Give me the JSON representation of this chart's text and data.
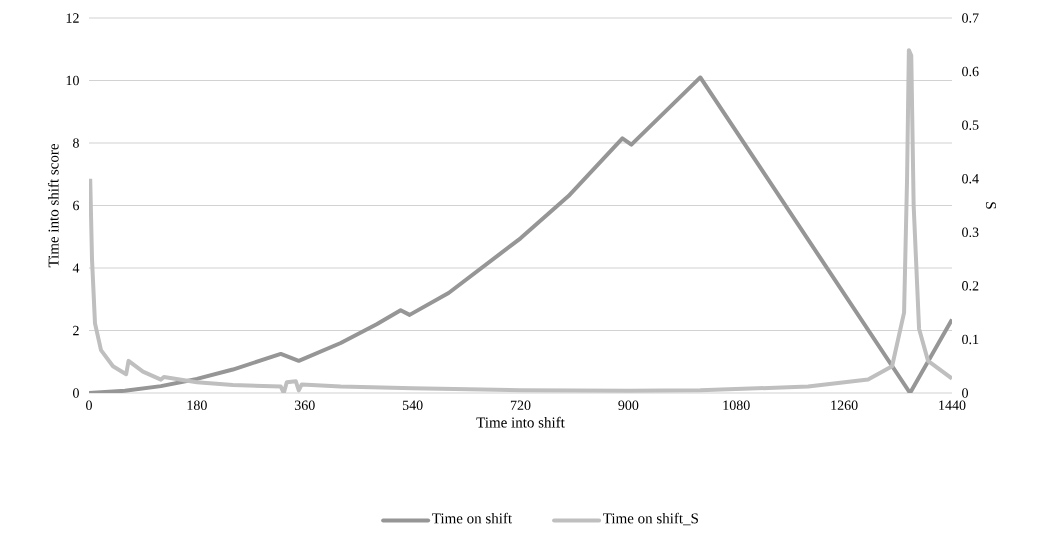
{
  "chart_data": {
    "type": "line",
    "xlabel": "Time into shift",
    "ylabel": "Time into shift score",
    "y2label": "S",
    "xlim": [
      0,
      1440
    ],
    "xticks": [
      0,
      180,
      360,
      540,
      720,
      900,
      1080,
      1260,
      1440
    ],
    "ylim": [
      0,
      12
    ],
    "yticks": [
      0,
      2,
      4,
      6,
      8,
      10,
      12
    ],
    "y2lim": [
      0,
      0.7
    ],
    "y2ticks": [
      0,
      0.1,
      0.2,
      0.3,
      0.4,
      0.5,
      0.6,
      0.7
    ],
    "grid": "y",
    "legend": "bottom",
    "marker": "none",
    "line_style": "solid",
    "series": [
      {
        "name": "Time on shift",
        "color": "#969696",
        "x": [
          0,
          60,
          120,
          180,
          240,
          320,
          350,
          420,
          480,
          520,
          535,
          600,
          720,
          800,
          890,
          905,
          1020,
          1370,
          1440
        ],
        "values": [
          0,
          0.07,
          0.22,
          0.45,
          0.75,
          1.25,
          1.03,
          1.6,
          2.2,
          2.65,
          2.5,
          3.2,
          4.95,
          6.3,
          8.15,
          7.95,
          10.1,
          0,
          2.35
        ]
      },
      {
        "name": "Time on shift_S",
        "color": "#bfbfbf",
        "axis": "y2",
        "x": [
          2,
          5,
          10,
          20,
          40,
          62,
          66,
          90,
          120,
          125,
          180,
          240,
          320,
          325,
          330,
          345,
          350,
          355,
          420,
          540,
          720,
          900,
          1020,
          1200,
          1300,
          1340,
          1360,
          1365,
          1368,
          1372,
          1376,
          1385,
          1400,
          1440
        ],
        "values": [
          0.4,
          0.25,
          0.13,
          0.08,
          0.05,
          0.035,
          0.06,
          0.04,
          0.025,
          0.03,
          0.02,
          0.015,
          0.012,
          0.0,
          0.02,
          0.022,
          0.005,
          0.016,
          0.012,
          0.009,
          0.005,
          0.004,
          0.005,
          0.012,
          0.025,
          0.05,
          0.15,
          0.4,
          0.64,
          0.63,
          0.35,
          0.12,
          0.06,
          0.027
        ]
      }
    ]
  }
}
